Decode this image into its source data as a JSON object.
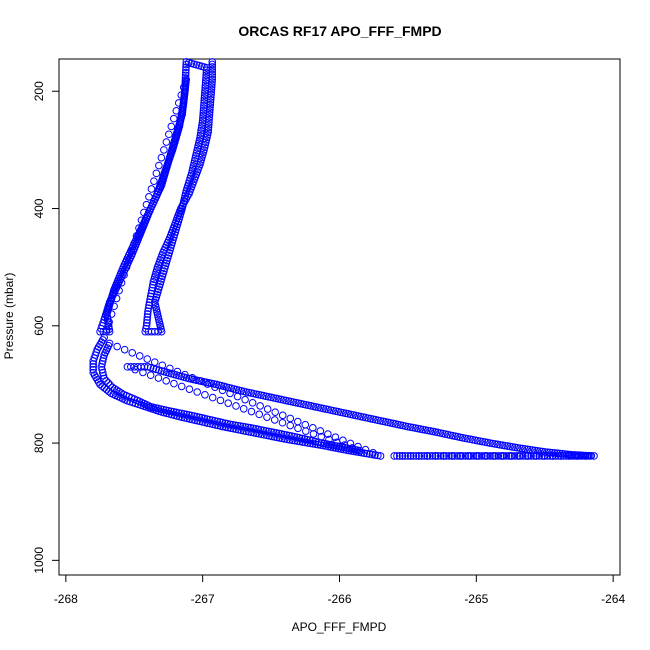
{
  "chart_data": {
    "type": "scatter",
    "title": "ORCAS RF17 APO_FFF_FMPD",
    "xlabel": "APO_FFF_FMPD",
    "ylabel": "Pressure (mbar)",
    "xlim": [
      -268.05,
      -263.95
    ],
    "ylim": [
      1025,
      145
    ],
    "y_reversed": true,
    "x_ticks": [
      -268,
      -267,
      -266,
      -265,
      -264
    ],
    "y_ticks": [
      200,
      400,
      600,
      800,
      1000
    ],
    "marker": "open-circle",
    "marker_color": "#0000ff",
    "grid": false,
    "legend": "none",
    "series": [
      {
        "points": [
          [
            -266.93,
            150
          ],
          [
            -266.93,
            180
          ],
          [
            -266.94,
            210
          ],
          [
            -266.95,
            240
          ],
          [
            -266.96,
            270
          ],
          [
            -266.99,
            300
          ],
          [
            -267.02,
            325
          ],
          [
            -267.06,
            350
          ],
          [
            -267.1,
            375
          ],
          [
            -267.16,
            400
          ],
          [
            -267.2,
            425
          ],
          [
            -267.24,
            450
          ],
          [
            -267.29,
            475
          ],
          [
            -267.33,
            500
          ],
          [
            -267.36,
            525
          ],
          [
            -267.38,
            550
          ],
          [
            -267.4,
            575
          ],
          [
            -267.41,
            600
          ],
          [
            -267.42,
            610
          ],
          [
            -267.35,
            610
          ],
          [
            -267.3,
            610
          ],
          [
            -267.35,
            560
          ],
          [
            -267.3,
            520
          ],
          [
            -267.25,
            480
          ],
          [
            -267.2,
            440
          ],
          [
            -267.15,
            400
          ],
          [
            -267.12,
            370
          ],
          [
            -267.08,
            340
          ],
          [
            -267.05,
            310
          ],
          [
            -267.02,
            280
          ],
          [
            -267.0,
            250
          ],
          [
            -266.99,
            220
          ],
          [
            -266.98,
            190
          ],
          [
            -266.97,
            160
          ],
          [
            -267.12,
            150
          ],
          [
            -267.13,
            200
          ],
          [
            -267.15,
            240
          ],
          [
            -267.2,
            280
          ],
          [
            -267.25,
            320
          ],
          [
            -267.3,
            360
          ],
          [
            -267.38,
            400
          ],
          [
            -267.45,
            440
          ],
          [
            -267.52,
            480
          ],
          [
            -267.6,
            520
          ],
          [
            -267.68,
            560
          ],
          [
            -267.72,
            590
          ],
          [
            -267.75,
            610
          ],
          [
            -267.68,
            610
          ],
          [
            -267.7,
            580
          ],
          [
            -267.65,
            540
          ],
          [
            -267.58,
            500
          ],
          [
            -267.5,
            460
          ],
          [
            -267.42,
            420
          ],
          [
            -267.34,
            380
          ],
          [
            -267.28,
            340
          ],
          [
            -267.22,
            300
          ],
          [
            -267.17,
            260
          ],
          [
            -267.14,
            220
          ],
          [
            -267.12,
            180
          ],
          [
            -267.72,
            620
          ],
          [
            -267.77,
            640
          ],
          [
            -267.8,
            660
          ],
          [
            -267.8,
            680
          ],
          [
            -267.75,
            700
          ],
          [
            -267.67,
            715
          ],
          [
            -267.55,
            728
          ],
          [
            -267.43,
            737
          ],
          [
            -267.3,
            747
          ],
          [
            -267.15,
            756
          ],
          [
            -267.0,
            764
          ],
          [
            -266.85,
            772
          ],
          [
            -266.7,
            779
          ],
          [
            -266.55,
            786
          ],
          [
            -266.4,
            793
          ],
          [
            -266.25,
            799
          ],
          [
            -266.1,
            805
          ],
          [
            -265.95,
            812
          ],
          [
            -265.8,
            818
          ],
          [
            -265.7,
            822
          ],
          [
            -267.68,
            630
          ],
          [
            -267.72,
            650
          ],
          [
            -267.74,
            670
          ],
          [
            -267.72,
            690
          ],
          [
            -267.66,
            705
          ],
          [
            -267.58,
            717
          ],
          [
            -267.48,
            727
          ],
          [
            -267.38,
            738
          ],
          [
            -267.25,
            745
          ],
          [
            -267.1,
            752
          ],
          [
            -266.95,
            760
          ],
          [
            -266.8,
            768
          ],
          [
            -266.65,
            774
          ],
          [
            -266.5,
            781
          ],
          [
            -266.35,
            788
          ],
          [
            -266.2,
            796
          ],
          [
            -266.13,
            800
          ],
          [
            -266.0,
            806
          ],
          [
            -265.85,
            813
          ],
          [
            -267.55,
            670
          ],
          [
            -267.5,
            670
          ],
          [
            -267.45,
            670
          ],
          [
            -267.4,
            670
          ],
          [
            -267.3,
            677
          ],
          [
            -267.1,
            690
          ],
          [
            -266.9,
            700
          ],
          [
            -266.7,
            712
          ],
          [
            -266.5,
            722
          ],
          [
            -266.3,
            732
          ],
          [
            -266.1,
            742
          ],
          [
            -265.9,
            752
          ],
          [
            -265.7,
            762
          ],
          [
            -265.5,
            772
          ],
          [
            -265.3,
            781
          ],
          [
            -265.1,
            791
          ],
          [
            -264.9,
            800
          ],
          [
            -264.7,
            808
          ],
          [
            -264.5,
            815
          ],
          [
            -264.3,
            820
          ],
          [
            -264.14,
            822
          ],
          [
            -265.6,
            822
          ],
          [
            -265.4,
            822
          ],
          [
            -265.2,
            822
          ],
          [
            -265.0,
            822
          ],
          [
            -264.8,
            822
          ],
          [
            -264.6,
            822
          ],
          [
            -264.4,
            822
          ],
          [
            -264.25,
            822
          ],
          [
            -264.17,
            822
          ]
        ]
      }
    ]
  }
}
